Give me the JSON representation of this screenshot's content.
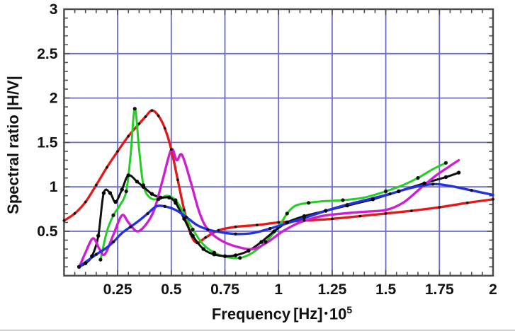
{
  "figure": {
    "background": "#ffffff",
    "border_color": "#4a4a4a",
    "grid_color": "#6b6bc4",
    "text_color": "#111111"
  },
  "chart_data": {
    "type": "line",
    "title": "",
    "xlabel": "Frequency",
    "xlabel_unit": "[Hz]",
    "xlabel_mult_symbol": "•",
    "xlabel_mult_base": "10",
    "xlabel_mult_exp": "5",
    "ylabel": "Spectral ratio |H/V|",
    "xlim": [
      0,
      2
    ],
    "ylim": [
      0,
      3
    ],
    "grid": true,
    "legend_position": "none",
    "x_ticks": [
      0.25,
      0.5,
      0.75,
      1,
      1.25,
      1.5,
      1.75,
      2
    ],
    "x_tick_labels": [
      "0.25",
      "0.5",
      "0.75",
      "1",
      "1.25",
      "1.5",
      "1.75",
      "2"
    ],
    "y_ticks": [
      0.5,
      1,
      1.5,
      2,
      2.5,
      3
    ],
    "y_tick_labels": [
      "0.5",
      "1",
      "1.5",
      "2",
      "2.5",
      "3"
    ],
    "x_minor_step": 0.05,
    "y_minor_step": 0.1,
    "series": [
      {
        "name": "red-smooth-curve",
        "color": "#e31a1a",
        "width": 3.4,
        "marker": "dot",
        "marker_color": "#111111",
        "marker_size": 1.9,
        "marker_every": 1,
        "points": [
          [
            0.0,
            0.62
          ],
          [
            0.05,
            0.7
          ],
          [
            0.1,
            0.83
          ],
          [
            0.15,
            1.02
          ],
          [
            0.2,
            1.22
          ],
          [
            0.25,
            1.4
          ],
          [
            0.3,
            1.57
          ],
          [
            0.35,
            1.71
          ],
          [
            0.38,
            1.79
          ],
          [
            0.41,
            1.86
          ],
          [
            0.44,
            1.8
          ],
          [
            0.47,
            1.66
          ],
          [
            0.5,
            1.42
          ],
          [
            0.53,
            1.08
          ],
          [
            0.56,
            0.74
          ],
          [
            0.59,
            0.47
          ],
          [
            0.62,
            0.37
          ],
          [
            0.66,
            0.43
          ],
          [
            0.72,
            0.51
          ],
          [
            0.8,
            0.55
          ],
          [
            0.9,
            0.57
          ],
          [
            1.0,
            0.6
          ],
          [
            1.12,
            0.62
          ],
          [
            1.25,
            0.64
          ],
          [
            1.38,
            0.67
          ],
          [
            1.5,
            0.7
          ],
          [
            1.62,
            0.73
          ],
          [
            1.75,
            0.77
          ],
          [
            1.88,
            0.82
          ],
          [
            2.0,
            0.86
          ]
        ]
      },
      {
        "name": "green-spiky-curve",
        "color": "#24ce24",
        "width": 3.0,
        "marker": "dot",
        "marker_color": "#111111",
        "marker_size": 2.6,
        "marker_every": 2,
        "points": [
          [
            0.17,
            0.18
          ],
          [
            0.2,
            0.5
          ],
          [
            0.23,
            0.68
          ],
          [
            0.26,
            0.79
          ],
          [
            0.29,
            0.95
          ],
          [
            0.31,
            1.35
          ],
          [
            0.33,
            1.88
          ],
          [
            0.35,
            1.42
          ],
          [
            0.37,
            1.02
          ],
          [
            0.4,
            0.88
          ],
          [
            0.44,
            0.86
          ],
          [
            0.48,
            0.9
          ],
          [
            0.52,
            0.85
          ],
          [
            0.56,
            0.7
          ],
          [
            0.6,
            0.52
          ],
          [
            0.65,
            0.35
          ],
          [
            0.7,
            0.26
          ],
          [
            0.76,
            0.21
          ],
          [
            0.82,
            0.2
          ],
          [
            0.88,
            0.26
          ],
          [
            0.94,
            0.38
          ],
          [
            1.0,
            0.55
          ],
          [
            1.04,
            0.7
          ],
          [
            1.08,
            0.79
          ],
          [
            1.14,
            0.82
          ],
          [
            1.22,
            0.84
          ],
          [
            1.3,
            0.85
          ],
          [
            1.4,
            0.88
          ],
          [
            1.5,
            0.95
          ],
          [
            1.58,
            1.02
          ],
          [
            1.65,
            1.1
          ],
          [
            1.72,
            1.2
          ],
          [
            1.78,
            1.27
          ]
        ]
      },
      {
        "name": "black-dotted-curve",
        "color": "#111111",
        "width": 3.0,
        "marker": "dot",
        "marker_color": "#000000",
        "marker_size": 2.7,
        "marker_every": 1,
        "points": [
          [
            0.07,
            0.1
          ],
          [
            0.1,
            0.14
          ],
          [
            0.13,
            0.22
          ],
          [
            0.16,
            0.45
          ],
          [
            0.185,
            0.93
          ],
          [
            0.215,
            0.93
          ],
          [
            0.24,
            0.83
          ],
          [
            0.27,
            0.97
          ],
          [
            0.3,
            1.13
          ],
          [
            0.34,
            1.06
          ],
          [
            0.37,
            1.0
          ],
          [
            0.41,
            0.92
          ],
          [
            0.45,
            0.88
          ],
          [
            0.49,
            0.88
          ],
          [
            0.52,
            0.82
          ],
          [
            0.56,
            0.64
          ],
          [
            0.6,
            0.45
          ],
          [
            0.65,
            0.3
          ],
          [
            0.7,
            0.24
          ],
          [
            0.75,
            0.22
          ],
          [
            0.8,
            0.23
          ],
          [
            0.86,
            0.28
          ],
          [
            0.92,
            0.38
          ],
          [
            0.98,
            0.5
          ],
          [
            1.04,
            0.6
          ],
          [
            1.12,
            0.67
          ],
          [
            1.22,
            0.73
          ],
          [
            1.32,
            0.79
          ],
          [
            1.44,
            0.86
          ],
          [
            1.56,
            0.95
          ],
          [
            1.68,
            1.04
          ],
          [
            1.78,
            1.11
          ],
          [
            1.84,
            1.16
          ]
        ]
      },
      {
        "name": "magenta-curve",
        "color": "#cf1ecf",
        "width": 3.4,
        "marker": "none",
        "marker_color": "#111111",
        "marker_size": 0,
        "marker_every": 0,
        "points": [
          [
            0.07,
            0.09
          ],
          [
            0.1,
            0.26
          ],
          [
            0.135,
            0.42
          ],
          [
            0.165,
            0.3
          ],
          [
            0.19,
            0.24
          ],
          [
            0.23,
            0.46
          ],
          [
            0.27,
            0.68
          ],
          [
            0.3,
            0.6
          ],
          [
            0.34,
            0.5
          ],
          [
            0.38,
            0.57
          ],
          [
            0.42,
            0.74
          ],
          [
            0.46,
            1.08
          ],
          [
            0.5,
            1.42
          ],
          [
            0.525,
            1.3
          ],
          [
            0.55,
            1.36
          ],
          [
            0.59,
            1.06
          ],
          [
            0.63,
            0.72
          ],
          [
            0.67,
            0.52
          ],
          [
            0.73,
            0.4
          ],
          [
            0.8,
            0.33
          ],
          [
            0.88,
            0.3
          ],
          [
            0.95,
            0.38
          ],
          [
            1.02,
            0.5
          ],
          [
            1.1,
            0.6
          ],
          [
            1.2,
            0.67
          ],
          [
            1.3,
            0.7
          ],
          [
            1.4,
            0.72
          ],
          [
            1.5,
            0.74
          ],
          [
            1.58,
            0.82
          ],
          [
            1.66,
            0.98
          ],
          [
            1.73,
            1.12
          ],
          [
            1.79,
            1.22
          ],
          [
            1.84,
            1.3
          ]
        ]
      },
      {
        "name": "blue-curve",
        "color": "#2431e0",
        "width": 3.4,
        "marker": "dot",
        "marker_color": "#111111",
        "marker_size": 2.2,
        "marker_every": 2,
        "points": [
          [
            0.07,
            0.1
          ],
          [
            0.11,
            0.17
          ],
          [
            0.15,
            0.24
          ],
          [
            0.19,
            0.3
          ],
          [
            0.23,
            0.38
          ],
          [
            0.27,
            0.48
          ],
          [
            0.31,
            0.55
          ],
          [
            0.35,
            0.62
          ],
          [
            0.39,
            0.7
          ],
          [
            0.43,
            0.78
          ],
          [
            0.47,
            0.78
          ],
          [
            0.52,
            0.74
          ],
          [
            0.57,
            0.66
          ],
          [
            0.62,
            0.57
          ],
          [
            0.67,
            0.52
          ],
          [
            0.73,
            0.49
          ],
          [
            0.8,
            0.47
          ],
          [
            0.88,
            0.48
          ],
          [
            0.96,
            0.53
          ],
          [
            1.04,
            0.59
          ],
          [
            1.12,
            0.65
          ],
          [
            1.22,
            0.73
          ],
          [
            1.32,
            0.8
          ],
          [
            1.42,
            0.86
          ],
          [
            1.52,
            0.92
          ],
          [
            1.62,
            0.99
          ],
          [
            1.72,
            1.03
          ],
          [
            1.8,
            1.01
          ],
          [
            1.9,
            0.96
          ],
          [
            2.0,
            0.91
          ]
        ]
      }
    ]
  }
}
